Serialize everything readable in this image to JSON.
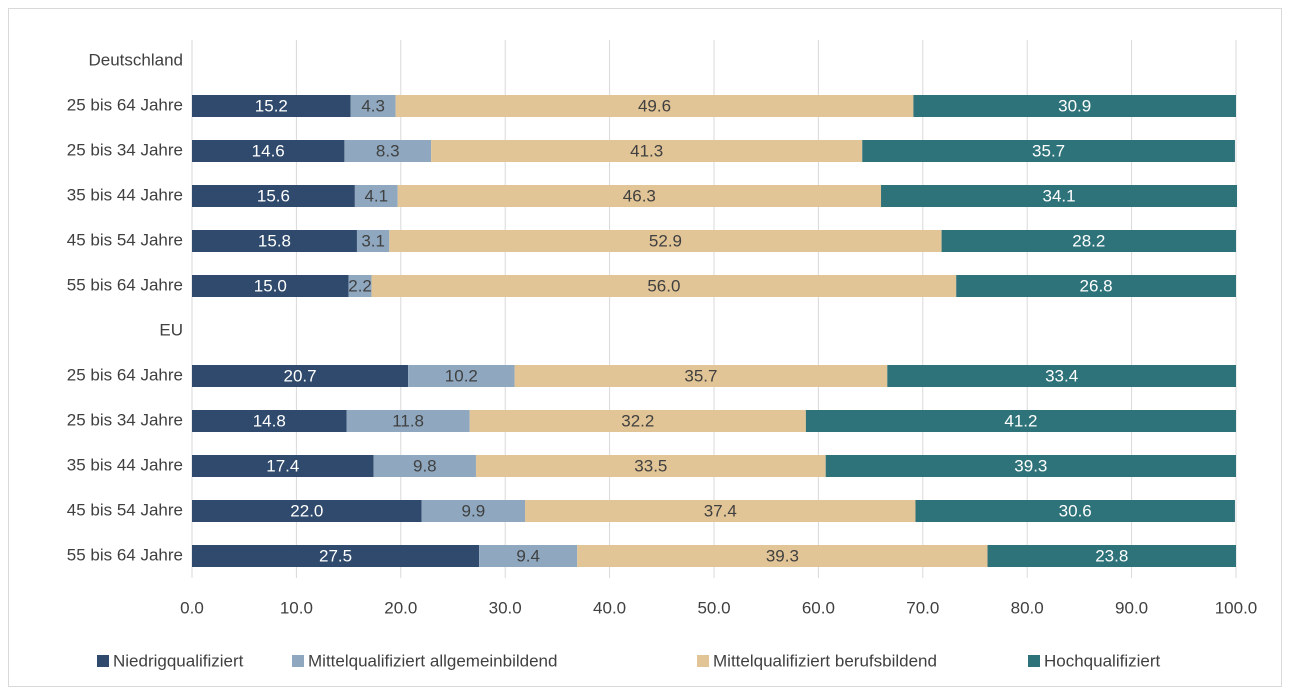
{
  "chart_data": {
    "type": "stacked_barh",
    "categories": [
      "Deutschland",
      "25 bis 64 Jahre",
      "25 bis 34 Jahre",
      "35 bis 44 Jahre",
      "45 bis 54 Jahre",
      "55 bis 64 Jahre",
      "EU",
      "25 bis 64 Jahre",
      "25 bis 34 Jahre",
      "35 bis 44 Jahre",
      "45 bis 54 Jahre",
      "55 bis 64 Jahre"
    ],
    "series": [
      {
        "name": "Niedrigqualifiziert",
        "color": "#2f4a6c",
        "label_color": "#ffffff",
        "values": [
          null,
          15.2,
          14.6,
          15.6,
          15.8,
          15.0,
          null,
          20.7,
          14.8,
          17.4,
          22.0,
          27.5
        ],
        "value_labels": [
          null,
          "15.2",
          "14.6",
          "15.6",
          "15.8",
          "15.0",
          null,
          "20.7",
          "14.8",
          "17.4",
          "22.0",
          "27.5"
        ]
      },
      {
        "name": "Mittelqualifiziert allgemeinbildend",
        "color": "#8fa8c0",
        "label_color": "#404040",
        "values": [
          null,
          4.3,
          8.3,
          4.1,
          3.1,
          2.2,
          null,
          10.2,
          11.8,
          9.8,
          9.9,
          9.4
        ],
        "value_labels": [
          null,
          "4.3",
          "8.3",
          "4.1",
          "3.1",
          "2.2",
          null,
          "10.2",
          "11.8",
          "9.8",
          "9.9",
          "9.4"
        ]
      },
      {
        "name": "Mittelqualifiziert berufsbildend",
        "color": "#e2c597",
        "label_color": "#404040",
        "values": [
          null,
          49.6,
          41.3,
          46.3,
          52.9,
          56.0,
          null,
          35.7,
          32.2,
          33.5,
          37.4,
          39.3
        ],
        "value_labels": [
          null,
          "49.6",
          "41.3",
          "46.3",
          "52.9",
          "56.0",
          null,
          "35.7",
          "32.2",
          "33.5",
          "37.4",
          "39.3"
        ]
      },
      {
        "name": "Hochqualifiziert",
        "color": "#2e727a",
        "label_color": "#ffffff",
        "values": [
          null,
          30.9,
          35.7,
          34.1,
          28.2,
          26.8,
          null,
          33.4,
          41.2,
          39.3,
          30.6,
          23.8
        ],
        "value_labels": [
          null,
          "30.9",
          "35.7",
          "34.1",
          "28.2",
          "26.8",
          null,
          "33.4",
          "41.2",
          "39.3",
          "30.6",
          "23.8"
        ]
      }
    ],
    "xlim": [
      0,
      100
    ],
    "xticks": [
      {
        "value": 0,
        "label": "0.0"
      },
      {
        "value": 10,
        "label": "10.0"
      },
      {
        "value": 20,
        "label": "20.0"
      },
      {
        "value": 30,
        "label": "30.0"
      },
      {
        "value": 40,
        "label": "40.0"
      },
      {
        "value": 50,
        "label": "50.0"
      },
      {
        "value": 60,
        "label": "60.0"
      },
      {
        "value": 70,
        "label": "70.0"
      },
      {
        "value": 80,
        "label": "80.0"
      },
      {
        "value": 90,
        "label": "90.0"
      },
      {
        "value": 100,
        "label": "100.0"
      }
    ],
    "grid": true,
    "legend": "bottom"
  }
}
